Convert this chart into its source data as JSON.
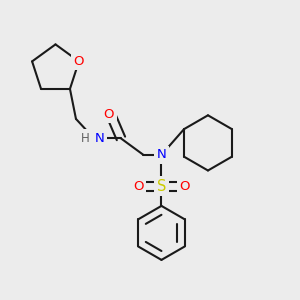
{
  "background_color": "#ececec",
  "bond_color": "#1a1a1a",
  "atom_colors": {
    "O": "#ff0000",
    "N": "#0000ff",
    "S": "#cccc00",
    "H": "#606060",
    "C": "#1a1a1a"
  },
  "figsize": [
    3.0,
    3.0
  ],
  "dpi": 100,
  "lw": 1.5,
  "fontsize": 9.5
}
